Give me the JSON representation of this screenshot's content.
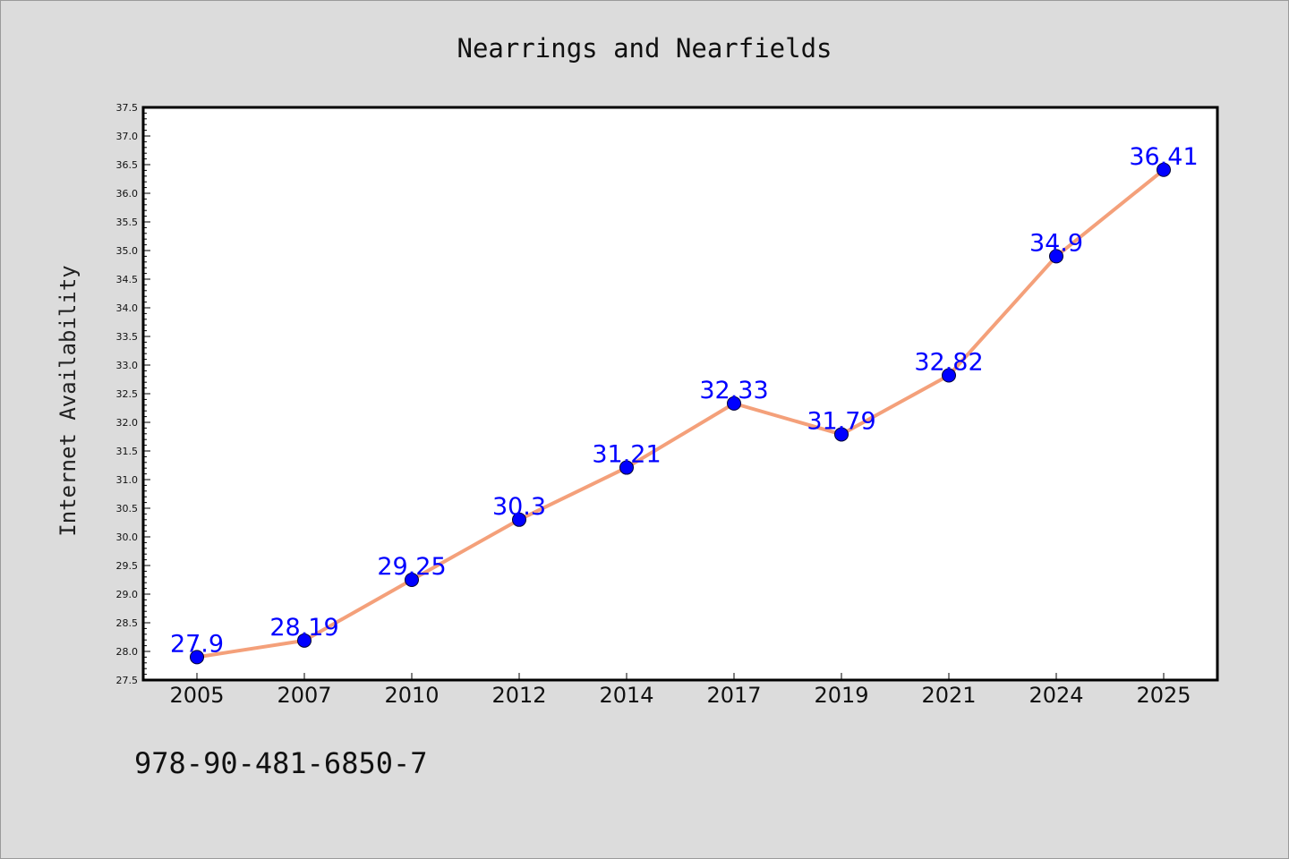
{
  "chart_data": {
    "type": "line",
    "title": "Nearrings and Nearfields",
    "xlabel": "",
    "ylabel": "Internet Availability",
    "categories": [
      "2005",
      "2007",
      "2010",
      "2012",
      "2014",
      "2017",
      "2019",
      "2021",
      "2024",
      "2025"
    ],
    "series": [
      {
        "values": [
          27.9,
          28.19,
          29.25,
          30.3,
          31.21,
          32.33,
          31.79,
          32.82,
          34.9,
          36.41
        ],
        "data_labels": [
          "27.9",
          "28.19",
          "29.25",
          "30.3",
          "31.21",
          "32.33",
          "31.79",
          "32.82",
          "34.9",
          "36.41"
        ],
        "line_color": "#f4a07a",
        "marker_color": "#0000ff"
      }
    ],
    "ylim": [
      27.5,
      37.5
    ],
    "yticks": [
      "27.5",
      "28.0",
      "28.5",
      "29.0",
      "29.5",
      "30.0",
      "30.5",
      "31.0",
      "31.5",
      "32.0",
      "32.5",
      "33.0",
      "33.5",
      "34.0",
      "34.5",
      "35.0",
      "35.5",
      "36.0",
      "36.5",
      "37.0",
      "37.5"
    ],
    "grid": false,
    "legend": "none",
    "background_color": "#dcdcdc",
    "plot_background_color": "#ffffff"
  },
  "footer_text": "978-90-481-6850-7"
}
